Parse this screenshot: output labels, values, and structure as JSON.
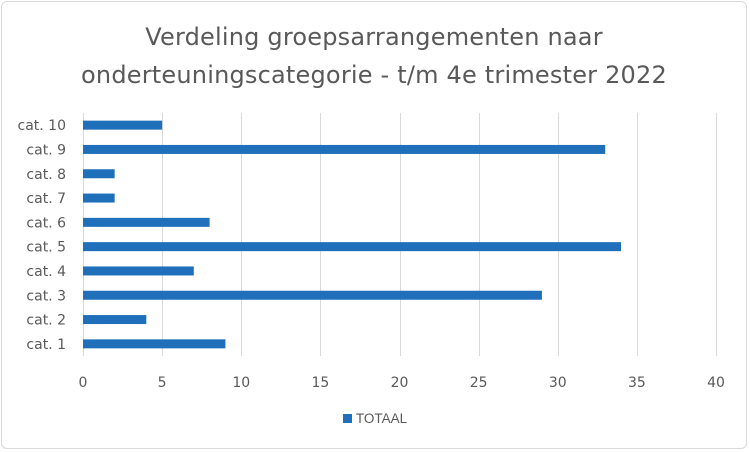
{
  "colors": {
    "bar": "#1f6fba",
    "grid": "#d9d9d9",
    "text": "#595959"
  },
  "chart_data": {
    "type": "bar",
    "orientation": "horizontal",
    "title_line1": "Verdeling groepsarrangementen naar",
    "title_line2": "onderteuningscategorie - t/m 4e trimester 2022",
    "categories": [
      "cat. 1",
      "cat. 2",
      "cat. 3",
      "cat. 4",
      "cat. 5",
      "cat. 6",
      "cat. 7",
      "cat. 8",
      "cat. 9",
      "cat. 10"
    ],
    "series": [
      {
        "name": "TOTAAL",
        "values": [
          9,
          4,
          29,
          7,
          34,
          8,
          2,
          2,
          33,
          5
        ]
      }
    ],
    "xlim": [
      0,
      40
    ],
    "xticks": [
      0,
      5,
      10,
      15,
      20,
      25,
      30,
      35,
      40
    ],
    "grid": "vertical",
    "legend_position": "bottom"
  }
}
